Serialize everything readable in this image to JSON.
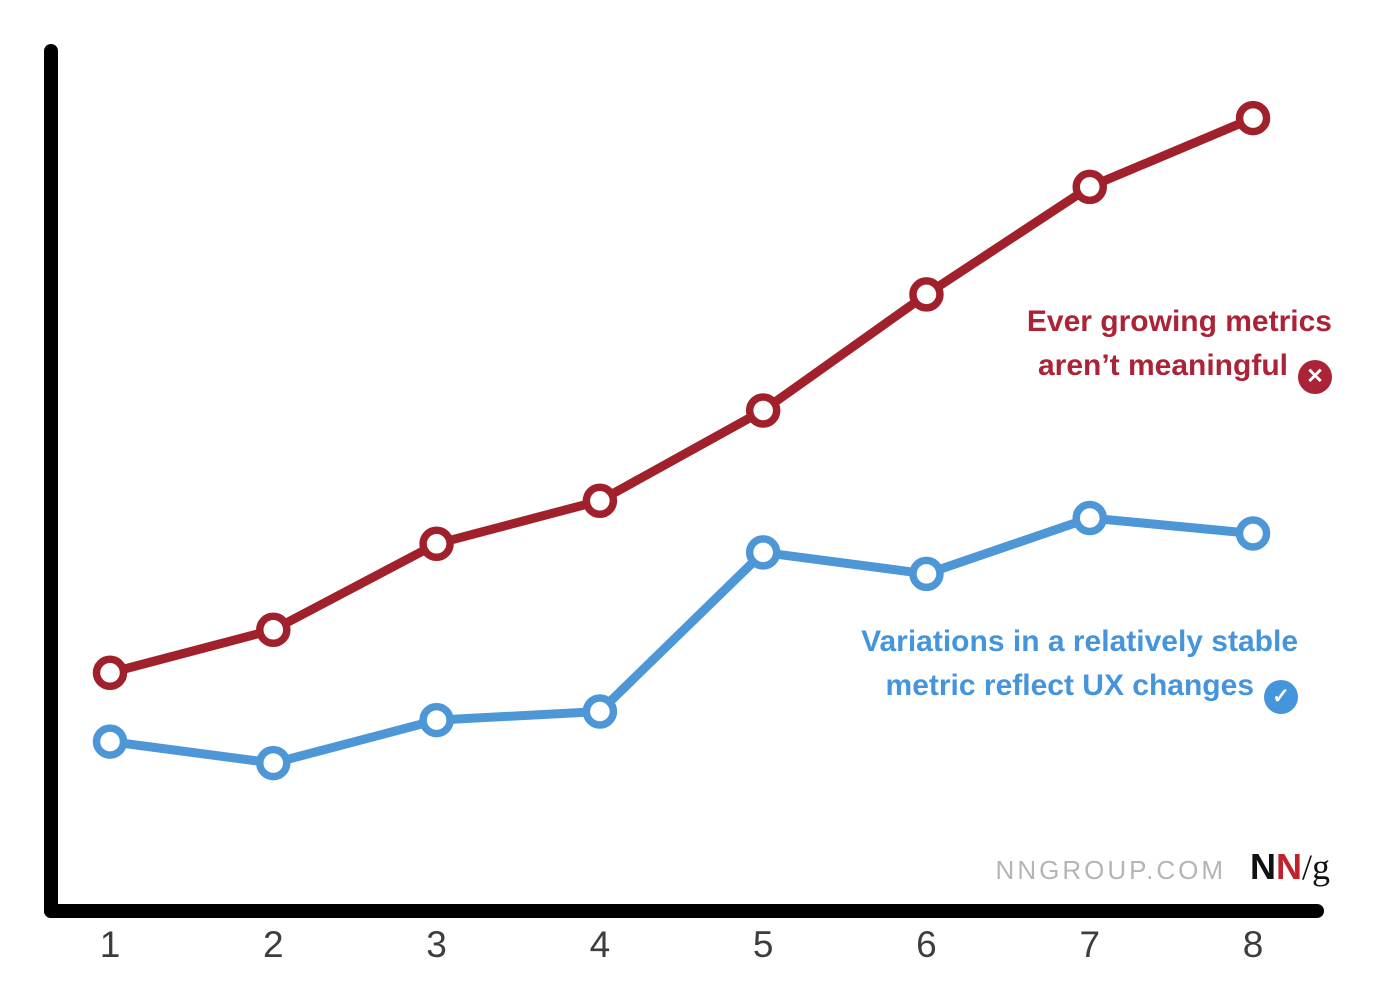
{
  "chart_data": {
    "type": "line",
    "categories": [
      "1",
      "2",
      "3",
      "4",
      "5",
      "6",
      "7",
      "8"
    ],
    "x": [
      1,
      2,
      3,
      4,
      5,
      6,
      7,
      8
    ],
    "series": [
      {
        "name": "ever-growing-metric",
        "label": "Ever growing metrics aren't meaningful",
        "color": "#a0212c",
        "marker": "open-circle",
        "values": [
          2.7,
          3.2,
          4.2,
          4.7,
          5.75,
          7.1,
          8.35,
          9.15
        ]
      },
      {
        "name": "stable-metric",
        "label": "Variations in a relatively stable metric reflect UX changes",
        "color": "#4e97d7",
        "marker": "open-circle",
        "values": [
          1.9,
          1.65,
          2.15,
          2.25,
          4.1,
          3.85,
          4.5,
          4.32
        ]
      }
    ],
    "title": "",
    "xlabel": "",
    "ylabel": "",
    "ylim": [
      0,
      10
    ],
    "grid": false,
    "legend_position": "inline-annotations"
  },
  "annotations": {
    "red": {
      "line1": "Ever growing metrics",
      "line2": "aren’t meaningful",
      "icon": "x-circle-icon",
      "icon_glyph": "✕",
      "color": "#ab2336"
    },
    "blue": {
      "line1": "Variations in a relatively stable",
      "line2": "metric reflect UX changes",
      "icon": "check-circle-icon",
      "icon_glyph": "✓",
      "color": "#4495dc"
    }
  },
  "footer": {
    "site": "NNGROUP.COM",
    "logo": {
      "n1": "N",
      "n2": "N",
      "slash_g": "/g"
    }
  },
  "colors": {
    "axis": "#000000",
    "red_line": "#a0212c",
    "blue_line": "#4e97d7",
    "red_text": "#ab2336",
    "blue_text": "#4495dc",
    "site_gray": "#b5b5b5",
    "tick_label": "#3d3d3d",
    "background": "#ffffff"
  }
}
